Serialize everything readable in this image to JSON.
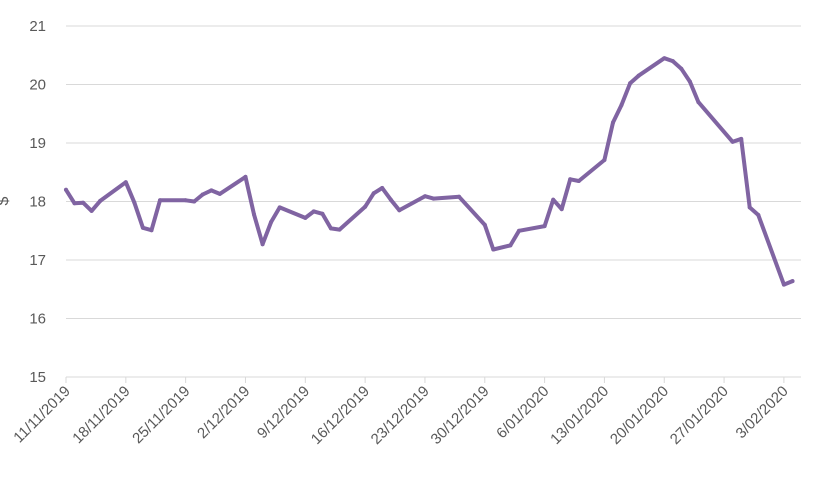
{
  "chart_data": {
    "type": "line",
    "title": "",
    "xlabel": "",
    "ylabel": "$",
    "ylim": [
      15,
      21
    ],
    "yticks": [
      15,
      16,
      17,
      18,
      19,
      20,
      21
    ],
    "xlim": [
      "2019-11-11",
      "2020-02-05"
    ],
    "grid": "horizontal",
    "legend": "none",
    "line_color": "#8064A2",
    "xtick_labels": [
      {
        "date": "2019-11-11",
        "label": "11/11/2019"
      },
      {
        "date": "2019-11-18",
        "label": "18/11/2019"
      },
      {
        "date": "2019-11-25",
        "label": "25/11/2019"
      },
      {
        "date": "2019-12-02",
        "label": "2/12/2019"
      },
      {
        "date": "2019-12-09",
        "label": "9/12/2019"
      },
      {
        "date": "2019-12-16",
        "label": "16/12/2019"
      },
      {
        "date": "2019-12-23",
        "label": "23/12/2019"
      },
      {
        "date": "2019-12-30",
        "label": "30/12/2019"
      },
      {
        "date": "2020-01-06",
        "label": "6/01/2020"
      },
      {
        "date": "2020-01-13",
        "label": "13/01/2020"
      },
      {
        "date": "2020-01-20",
        "label": "20/01/2020"
      },
      {
        "date": "2020-01-27",
        "label": "27/01/2020"
      },
      {
        "date": "2020-02-03",
        "label": "3/02/2020"
      }
    ],
    "x": [
      "2019-11-11",
      "2019-11-12",
      "2019-11-13",
      "2019-11-14",
      "2019-11-15",
      "2019-11-18",
      "2019-11-19",
      "2019-11-20",
      "2019-11-21",
      "2019-11-22",
      "2019-11-25",
      "2019-11-26",
      "2019-11-27",
      "2019-11-28",
      "2019-11-29",
      "2019-12-02",
      "2019-12-03",
      "2019-12-04",
      "2019-12-05",
      "2019-12-06",
      "2019-12-09",
      "2019-12-10",
      "2019-12-11",
      "2019-12-12",
      "2019-12-13",
      "2019-12-16",
      "2019-12-17",
      "2019-12-18",
      "2019-12-19",
      "2019-12-20",
      "2019-12-23",
      "2019-12-24",
      "2019-12-27",
      "2019-12-30",
      "2019-12-31",
      "2020-01-02",
      "2020-01-03",
      "2020-01-06",
      "2020-01-07",
      "2020-01-08",
      "2020-01-09",
      "2020-01-10",
      "2020-01-13",
      "2020-01-14",
      "2020-01-15",
      "2020-01-16",
      "2020-01-17",
      "2020-01-20",
      "2020-01-21",
      "2020-01-22",
      "2020-01-23",
      "2020-01-24",
      "2020-01-28",
      "2020-01-29",
      "2020-01-30",
      "2020-01-31",
      "2020-02-03",
      "2020-02-04"
    ],
    "series": [
      {
        "values": [
          18.2,
          17.97,
          17.98,
          17.84,
          18.01,
          18.33,
          17.98,
          17.55,
          17.51,
          18.02,
          18.02,
          18.0,
          18.12,
          18.19,
          18.13,
          18.42,
          17.78,
          17.27,
          17.65,
          17.9,
          17.72,
          17.83,
          17.79,
          17.54,
          17.52,
          17.91,
          18.14,
          18.23,
          18.03,
          17.85,
          18.09,
          18.05,
          18.08,
          17.6,
          17.18,
          17.25,
          17.5,
          17.58,
          18.03,
          17.87,
          18.38,
          18.35,
          18.71,
          19.35,
          19.65,
          20.02,
          20.15,
          20.45,
          20.4,
          20.27,
          20.05,
          19.7,
          19.02,
          19.07,
          17.9,
          17.77,
          16.58,
          16.64
        ]
      }
    ]
  }
}
